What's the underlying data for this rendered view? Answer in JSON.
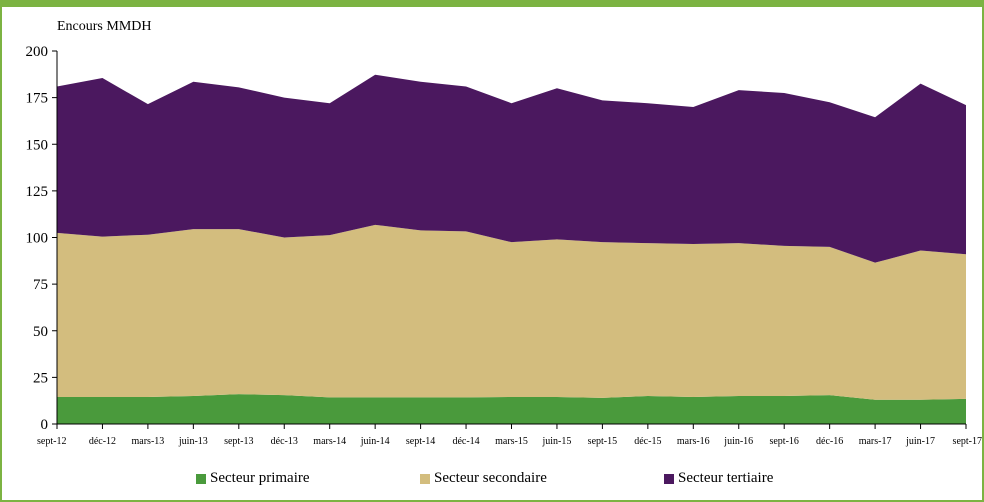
{
  "chart_data": {
    "type": "area",
    "stacked": true,
    "ylabel": "Encours MMDH",
    "ylim": [
      0,
      200
    ],
    "yticks": [
      0,
      25,
      50,
      75,
      100,
      125,
      150,
      175,
      200
    ],
    "categories": [
      "sept-12",
      "déc-12",
      "mars-13",
      "juin-13",
      "sept-13",
      "déc-13",
      "mars-14",
      "juin-14",
      "sept-14",
      "déc-14",
      "mars-15",
      "juin-15",
      "sept-15",
      "déc-15",
      "mars-16",
      "juin-16",
      "sept-16",
      "déc-16",
      "mars-17",
      "juin-17",
      "sept-17"
    ],
    "series": [
      {
        "name": "Secteur primaire",
        "color": "#4a9a3c",
        "values": [
          14.5,
          14.5,
          14.5,
          15,
          16,
          15.5,
          14.3,
          14.3,
          14.3,
          14.3,
          14.5,
          14.5,
          14.0,
          15.0,
          14.5,
          15.0,
          15.0,
          15.5,
          13.0,
          13.0,
          13.5
        ]
      },
      {
        "name": "Secteur secondaire",
        "color": "#d3bd7e",
        "values": [
          88,
          86,
          87,
          89.5,
          88.5,
          84.5,
          87,
          92.5,
          89.5,
          89,
          83,
          84.5,
          83.5,
          82,
          82,
          82,
          80.5,
          79.5,
          73.5,
          80,
          77.5
        ]
      },
      {
        "name": "Secteur tertiaire",
        "color": "#4b185f",
        "values": [
          78.5,
          85,
          70,
          79,
          76,
          75,
          70.7,
          80.5,
          79.7,
          77.7,
          74.5,
          81,
          76,
          75,
          73.5,
          82,
          82,
          77.5,
          78,
          89.5,
          80
        ]
      }
    ],
    "legend_position": "bottom"
  }
}
